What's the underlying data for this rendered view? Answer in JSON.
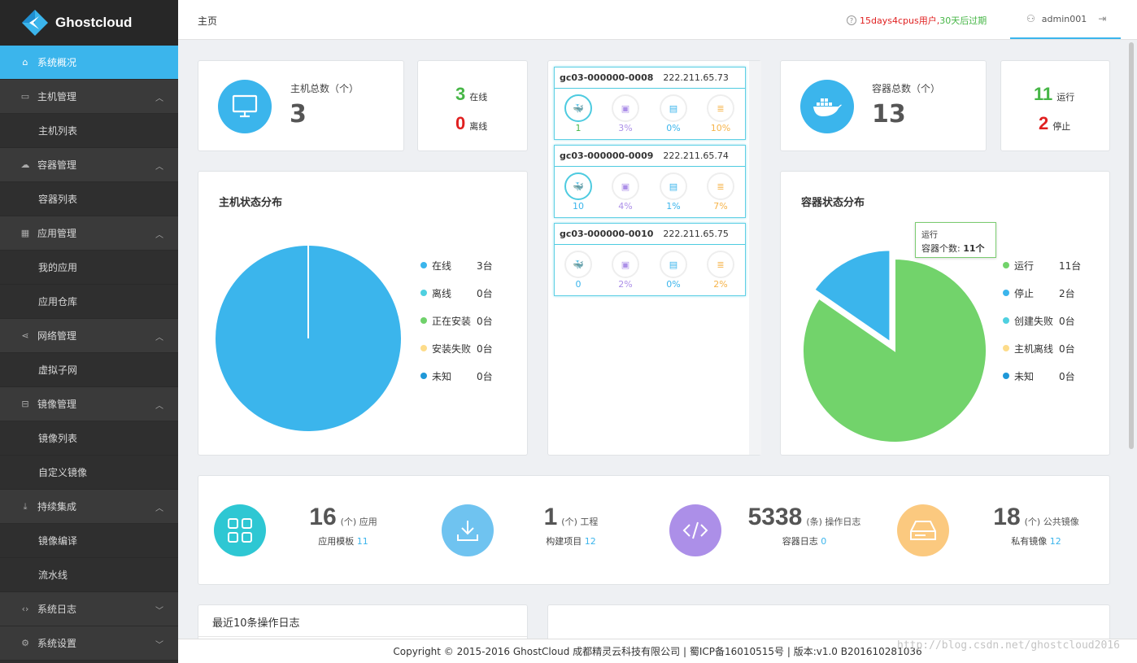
{
  "app": {
    "name": "Ghostcloud"
  },
  "sidebar": {
    "items": [
      {
        "label": "系统概况",
        "icon": "home-icon"
      },
      {
        "label": "主机管理",
        "icon": "monitor-icon"
      },
      {
        "label": "主机列表"
      },
      {
        "label": "容器管理",
        "icon": "cloud-icon"
      },
      {
        "label": "容器列表"
      },
      {
        "label": "应用管理",
        "icon": "grid-icon"
      },
      {
        "label": "我的应用"
      },
      {
        "label": "应用仓库"
      },
      {
        "label": "网络管理",
        "icon": "share-icon"
      },
      {
        "label": "虚拟子网"
      },
      {
        "label": "镜像管理",
        "icon": "drive-icon"
      },
      {
        "label": "镜像列表"
      },
      {
        "label": "自定义镜像"
      },
      {
        "label": "持续集成",
        "icon": "download-icon"
      },
      {
        "label": "镜像编译"
      },
      {
        "label": "流水线"
      },
      {
        "label": "系统日志",
        "icon": "code-icon"
      },
      {
        "label": "系统设置",
        "icon": "gear-icon"
      }
    ]
  },
  "header": {
    "breadcrumb": "主页",
    "license_red": "15days4cpus用户,",
    "license_green": "30天后过期",
    "username": "admin001"
  },
  "hosts": {
    "label": "主机总数（个）",
    "total": "3",
    "online_num": "3",
    "online_label": "在线",
    "offline_num": "0",
    "offline_label": "离线"
  },
  "containers": {
    "label": "容器总数（个）",
    "total": "13",
    "running_num": "11",
    "running_label": "运行",
    "stopped_num": "2",
    "stopped_label": "停止"
  },
  "host_list": [
    {
      "name": "gc03-000000-0008",
      "ip": "222.211.65.73",
      "containers": "1",
      "cpu": "3%",
      "mem": "0%",
      "disk": "10%"
    },
    {
      "name": "gc03-000000-0009",
      "ip": "222.211.65.74",
      "containers": "10",
      "cpu": "4%",
      "mem": "1%",
      "disk": "7%"
    },
    {
      "name": "gc03-000000-0010",
      "ip": "222.211.65.75",
      "containers": "0",
      "cpu": "2%",
      "mem": "0%",
      "disk": "2%"
    }
  ],
  "host_chart": {
    "title": "主机状态分布",
    "legend": [
      {
        "label": "在线",
        "value": "3台",
        "color": "#3bb5ec"
      },
      {
        "label": "离线",
        "value": "0台",
        "color": "#4fd0e0"
      },
      {
        "label": "正在安装",
        "value": "0台",
        "color": "#6fd16a"
      },
      {
        "label": "安装失败",
        "value": "0台",
        "color": "#fddc8a"
      },
      {
        "label": "未知",
        "value": "0台",
        "color": "#1f98d8"
      }
    ]
  },
  "container_chart": {
    "title": "容器状态分布",
    "legend": [
      {
        "label": "运行",
        "value": "11台",
        "color": "#72d36b"
      },
      {
        "label": "停止",
        "value": "2台",
        "color": "#3bb5ec"
      },
      {
        "label": "创建失败",
        "value": "0台",
        "color": "#4fd0e0"
      },
      {
        "label": "主机离线",
        "value": "0台",
        "color": "#fddc8a"
      },
      {
        "label": "未知",
        "value": "0台",
        "color": "#1f98d8"
      }
    ],
    "tooltip_title": "运行",
    "tooltip_label": "容器个数: ",
    "tooltip_value": "11个"
  },
  "chart_data": [
    {
      "type": "pie",
      "title": "主机状态分布",
      "categories": [
        "在线",
        "离线",
        "正在安装",
        "安装失败",
        "未知"
      ],
      "values": [
        3,
        0,
        0,
        0,
        0
      ]
    },
    {
      "type": "pie",
      "title": "容器状态分布",
      "categories": [
        "运行",
        "停止",
        "创建失败",
        "主机离线",
        "未知"
      ],
      "values": [
        11,
        2,
        0,
        0,
        0
      ]
    }
  ],
  "summary": [
    {
      "num": "16",
      "unit": "(个) 应用",
      "sub": "应用模板 ",
      "link": "11",
      "color": "#2ec7d3",
      "icon": "grid-icon"
    },
    {
      "num": "1",
      "unit": "(个) 工程",
      "sub": "构建项目 ",
      "link": "12",
      "color": "#6fc3f0",
      "icon": "download-icon"
    },
    {
      "num": "5338",
      "unit": "(条) 操作日志",
      "sub": "容器日志 ",
      "link": "0",
      "color": "#ac8fe8",
      "icon": "code-icon"
    },
    {
      "num": "18",
      "unit": "(个) 公共镜像",
      "sub": "私有镜像 ",
      "link": "12",
      "color": "#fbc97f",
      "icon": "drive-icon"
    }
  ],
  "recent_logs": {
    "title": "最近10条操作日志"
  },
  "footer": {
    "copyright": "Copyright © 2015-2016 GhostCloud 成都精灵云科技有限公司 | 蜀ICP备16010515号 | 版本:v1.0 B201610281036",
    "watermark": "http://blog.csdn.net/ghostcloud2016"
  }
}
